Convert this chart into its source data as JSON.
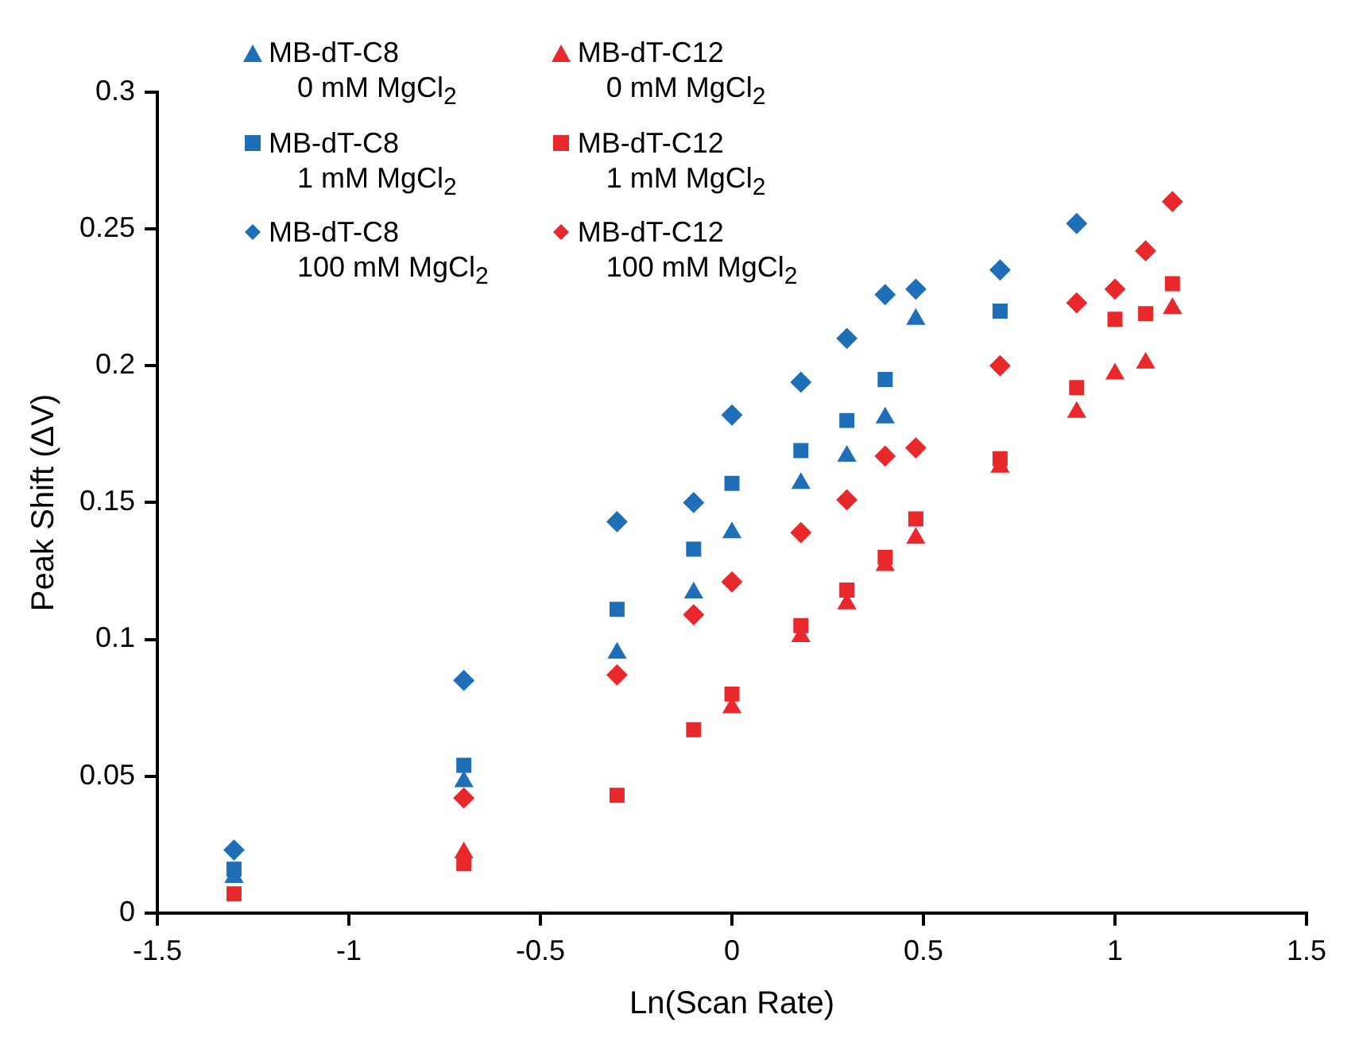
{
  "chart_data": {
    "type": "scatter",
    "xlabel": "Ln(Scan Rate)",
    "ylabel": "Peak Shift (ΔV)",
    "xlim": [
      -1.5,
      1.5
    ],
    "xticks": [
      -1.5,
      -1,
      -0.5,
      0,
      0.5,
      1,
      1.5
    ],
    "ylim": [
      0,
      0.3
    ],
    "yticks": [
      0,
      0.05,
      0.1,
      0.15,
      0.2,
      0.25,
      0.3
    ],
    "grid": false,
    "legend": "top left",
    "series": [
      {
        "name": "MB-dT-C8 0 mM MgCl$_{2}$",
        "color": "#1f6fb8",
        "marker": "triangle",
        "x": [
          -1.3,
          -0.7,
          -0.3,
          -0.1,
          0,
          0.18,
          0.3,
          0.4,
          0.48
        ],
        "values": [
          0.013,
          0.048,
          0.095,
          0.117,
          0.139,
          0.157,
          0.167,
          0.181,
          0.217
        ]
      },
      {
        "name": "MB-dT-C12 0 mM MgCl$_{2}$",
        "color": "#e8282b",
        "marker": "triangle",
        "x": [
          -0.7,
          0,
          0.18,
          0.3,
          0.4,
          0.48,
          0.7,
          0.9,
          1.0,
          1.08,
          1.15
        ],
        "values": [
          0.022,
          0.075,
          0.101,
          0.113,
          0.127,
          0.137,
          0.163,
          0.183,
          0.197,
          0.201,
          0.221
        ]
      },
      {
        "name": "MB-dT-C8 1 mM MgCl$_{2}$",
        "color": "#1f6fb8",
        "marker": "square",
        "x": [
          -1.3,
          -0.7,
          -0.3,
          -0.1,
          0,
          0.18,
          0.3,
          0.4,
          0.7
        ],
        "values": [
          0.016,
          0.054,
          0.111,
          0.133,
          0.157,
          0.169,
          0.18,
          0.195,
          0.22
        ]
      },
      {
        "name": "MB-dT-C12 1 mM MgCl$_{2}$",
        "color": "#e8282b",
        "marker": "square",
        "x": [
          -1.3,
          -0.7,
          -0.3,
          -0.1,
          0,
          0.18,
          0.3,
          0.4,
          0.48,
          0.7,
          0.9,
          1.0,
          1.08,
          1.15
        ],
        "values": [
          0.007,
          0.018,
          0.043,
          0.067,
          0.08,
          0.105,
          0.118,
          0.13,
          0.144,
          0.166,
          0.192,
          0.217,
          0.219,
          0.23
        ]
      },
      {
        "name": "MB-dT-C8 100 mM MgCl$_{2}$",
        "color": "#1f6fb8",
        "marker": "diamond",
        "x": [
          -1.3,
          -0.7,
          -0.3,
          -0.1,
          0,
          0.18,
          0.3,
          0.4,
          0.48,
          0.7,
          0.9
        ],
        "values": [
          0.023,
          0.085,
          0.143,
          0.15,
          0.182,
          0.194,
          0.21,
          0.226,
          0.228,
          0.235,
          0.252
        ]
      },
      {
        "name": "MB-dT-C12 100 mM MgCl$_{2}$",
        "color": "#e8282b",
        "marker": "diamond",
        "x": [
          -0.7,
          -0.3,
          -0.1,
          0,
          0.18,
          0.3,
          0.4,
          0.48,
          0.7,
          0.9,
          1.0,
          1.08,
          1.15
        ],
        "values": [
          0.042,
          0.087,
          0.109,
          0.121,
          0.139,
          0.151,
          0.167,
          0.17,
          0.2,
          0.223,
          0.228,
          0.242,
          0.26
        ]
      }
    ]
  }
}
